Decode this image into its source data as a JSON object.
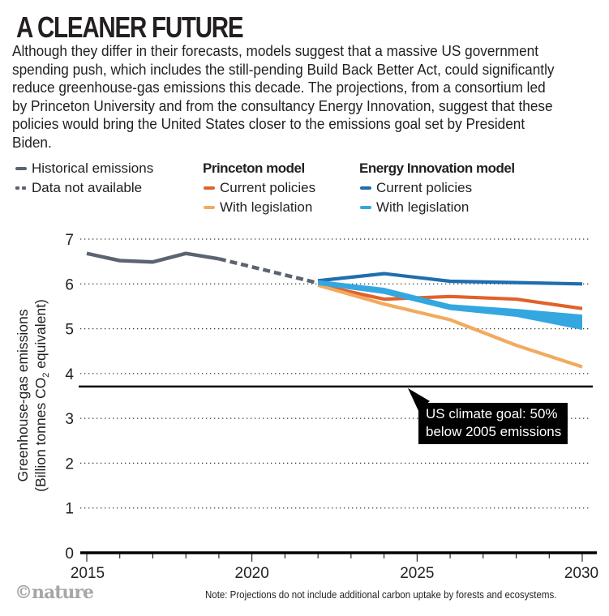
{
  "header": {
    "title": "A CLEANER FUTURE",
    "subtitle": "Although they differ in their forecasts, models suggest that a massive US government spending push, which includes the still-pending Build Back Better Act, could significantly reduce greenhouse-gas emissions this decade. The projections, from a consortium led by Princeton University and from the consultancy Energy Innovation, suggest that these policies would bring the United States closer to the emissions goal set by President Biden."
  },
  "legend": {
    "historical": "Historical emissions",
    "not_available": "Data not available",
    "princeton_head": "Princeton model",
    "princeton_current": "Current policies",
    "princeton_legislation": "With legislation",
    "ei_head": "Energy Innovation model",
    "ei_current": "Current policies",
    "ei_legislation": "With legislation"
  },
  "colors": {
    "historical": "#5b6470",
    "princeton_current": "#e0622a",
    "princeton_legislation": "#f2aa5e",
    "ei_current": "#1f6eae",
    "ei_legislation": "#35a7e0",
    "goal": "#000000",
    "grid": "#333333"
  },
  "annotation": {
    "line1": "US climate goal: 50%",
    "line2": "below 2005 emissions"
  },
  "footer": {
    "logo": "©nature",
    "note": "Note: Projections do not include additional carbon uptake by forests and ecosystems."
  },
  "chart_data": {
    "type": "line",
    "title": "A CLEANER FUTURE",
    "xlabel": "",
    "ylabel": "Greenhouse-gas emissions (Billion tonnes CO2 equivalent)",
    "ylabel_line1": "Greenhouse-gas emissions",
    "ylabel_line2_pre": "(Billion tonnes CO",
    "ylabel_line2_sub": "2",
    "ylabel_line2_post": " equivalent)",
    "xlim": [
      2015,
      2030
    ],
    "ylim": [
      0,
      7
    ],
    "x_ticks": [
      2015,
      2020,
      2025,
      2030
    ],
    "x_minor_ticks": [
      2015,
      2016,
      2017,
      2018,
      2019,
      2020,
      2021,
      2022,
      2023,
      2024,
      2025,
      2026,
      2027,
      2028,
      2029,
      2030
    ],
    "y_ticks": [
      0,
      1,
      2,
      3,
      4,
      5,
      6,
      7
    ],
    "grid": "horizontal-dotted",
    "legend_position": "top",
    "goal_line": {
      "value": 3.71,
      "label": "US climate goal: 50% below 2005 emissions"
    },
    "series": [
      {
        "name": "Historical emissions",
        "key": "historical",
        "style": "solid",
        "x": [
          2015,
          2016,
          2017,
          2018,
          2019
        ],
        "y": [
          6.68,
          6.52,
          6.49,
          6.68,
          6.56
        ]
      },
      {
        "name": "Data not available",
        "key": "historical",
        "style": "dashed",
        "x": [
          2019,
          2022
        ],
        "y": [
          6.56,
          6.02
        ]
      },
      {
        "name": "Princeton model – Current policies",
        "key": "princeton_current",
        "style": "solid",
        "x": [
          2022,
          2024,
          2026,
          2028,
          2030
        ],
        "y": [
          5.98,
          5.66,
          5.72,
          5.66,
          5.45
        ]
      },
      {
        "name": "Princeton model – With legislation",
        "key": "princeton_legislation",
        "style": "solid",
        "x": [
          2022,
          2024,
          2026,
          2028,
          2030
        ],
        "y": [
          5.97,
          5.55,
          5.2,
          4.63,
          4.15
        ]
      },
      {
        "name": "Energy Innovation model – Current policies",
        "key": "ei_current",
        "style": "solid",
        "x": [
          2022,
          2024,
          2026,
          2028,
          2030
        ],
        "y": [
          6.07,
          6.23,
          6.06,
          6.03,
          6.0
        ]
      },
      {
        "name": "Energy Innovation model – With legislation",
        "key": "ei_legislation",
        "style": "band",
        "x": [
          2022,
          2024,
          2026,
          2028,
          2030
        ],
        "y_high": [
          6.04,
          5.87,
          5.5,
          5.4,
          5.27
        ],
        "y_low": [
          6.02,
          5.82,
          5.46,
          5.31,
          5.02
        ]
      }
    ]
  }
}
